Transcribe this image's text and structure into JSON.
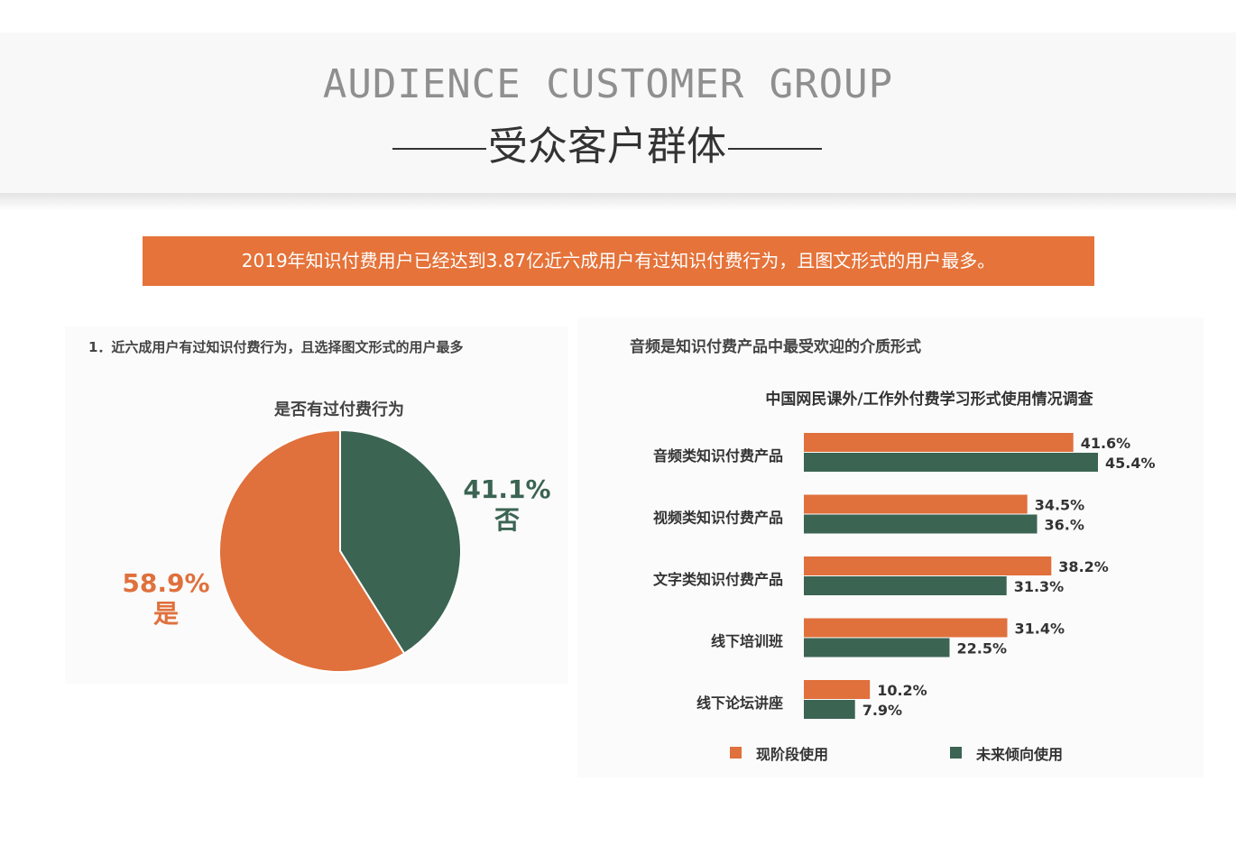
{
  "header": {
    "title_en": "AUDIENCE CUSTOMER GROUP",
    "title_cn": "受众客户群体"
  },
  "banner": {
    "text": "2019年知识付费用户已经达到3.87亿近六成用户有过知识付费行为，且图文形式的用户最多。"
  },
  "colors": {
    "accent": "#e0703c",
    "dark": "#3b6453",
    "banner": "#e5733a"
  },
  "chart_data": [
    {
      "type": "pie",
      "heading": "1．近六成用户有过知识付费行为，且选择图文形式的用户最多",
      "title": "是否有过付费行为",
      "slices": [
        {
          "label": "否",
          "value": 41.1,
          "value_label": "41.1%",
          "color": "#3b6453"
        },
        {
          "label": "是",
          "value": 58.9,
          "value_label": "58.9%",
          "color": "#e0703c"
        }
      ]
    },
    {
      "type": "bar",
      "heading": "音频是知识付费产品中最受欢迎的介质形式",
      "title": "中国网民课外/工作外付费学习形式使用情况调查",
      "categories": [
        "音频类知识付费产品",
        "视频类知识付费产品",
        "文字类知识付费产品",
        "线下培训班",
        "线下论坛讲座"
      ],
      "series": [
        {
          "name": "现阶段使用",
          "color": "#e0703c",
          "values": [
            41.6,
            34.5,
            38.2,
            31.4,
            10.2
          ],
          "labels": [
            "41.6%",
            "34.5%",
            "38.2%",
            "31.4%",
            "10.2%"
          ]
        },
        {
          "name": "未来倾向使用",
          "color": "#3b6453",
          "values": [
            45.4,
            36.0,
            31.3,
            22.5,
            7.9
          ],
          "labels": [
            "45.4%",
            "36.%",
            "31.3%",
            "22.5%",
            "7.9%"
          ]
        }
      ],
      "legend": "bottom"
    }
  ]
}
